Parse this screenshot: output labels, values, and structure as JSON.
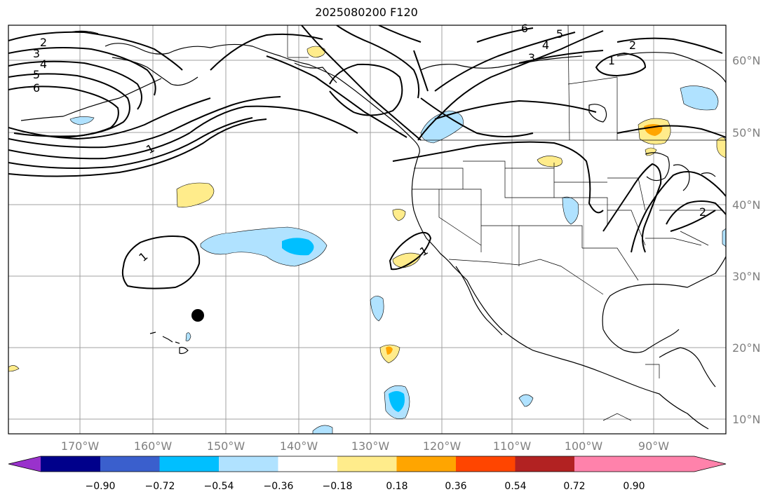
{
  "title": "2025080200 F120",
  "lat_labels": [
    "60°N",
    "50°N",
    "40°N",
    "30°N",
    "20°N",
    "10°N"
  ],
  "lon_labels": [
    "170°W",
    "160°W",
    "150°W",
    "140°W",
    "130°W",
    "120°W",
    "110°W",
    "100°W",
    "90°W"
  ],
  "colorbar": {
    "colors": [
      "#9932cc",
      "#00008b",
      "#3a5fcd",
      "#00bfff",
      "#b0e2ff",
      "#ffffff",
      "#ffec8b",
      "#ffa500",
      "#ff4500",
      "#b22222",
      "#ff82ab"
    ],
    "tick_labels": [
      "−0.90",
      "−0.72",
      "−0.54",
      "−0.36",
      "−0.18",
      "0.18",
      "0.36",
      "0.54",
      "0.72",
      "0.90"
    ]
  },
  "contour_labels": [
    "2",
    "3",
    "4",
    "5",
    "6",
    "1",
    "1",
    "6",
    "5",
    "4",
    "3",
    "2",
    "1",
    "1",
    "2"
  ],
  "colors": {
    "grid": "#a0a0a0",
    "coast": "#000000",
    "positive_light": "#ffec8b",
    "positive_mid": "#ffa500",
    "negative_light": "#b0e2ff",
    "negative_mid": "#00bfff"
  },
  "marker": "storm-center-dot"
}
